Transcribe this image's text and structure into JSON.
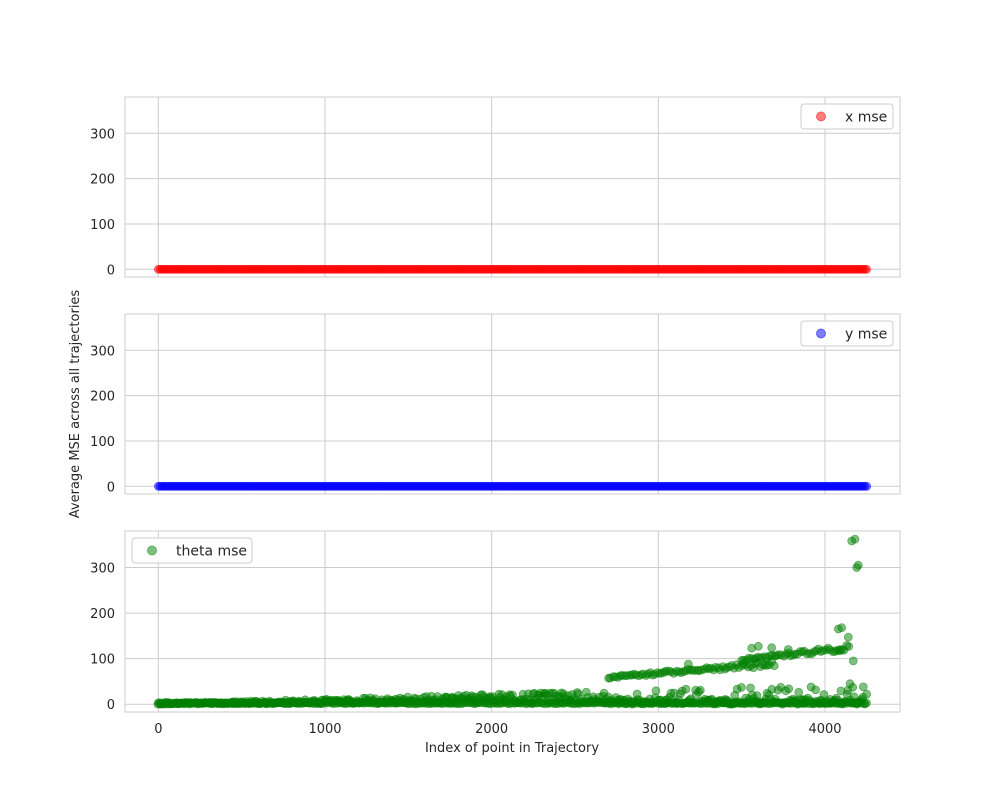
{
  "chart_data": [
    {
      "type": "scatter",
      "panel": "top",
      "xlim": [
        -200,
        4450
      ],
      "ylim": [
        -17,
        380
      ],
      "xticks": [
        0,
        1000,
        2000,
        3000,
        4000
      ],
      "yticks": [
        0,
        100,
        200,
        300
      ],
      "grid": true,
      "legend_placement": "top-right",
      "series": [
        {
          "name": "x mse",
          "color": "#ff0000",
          "alpha": 0.5,
          "x_range": [
            0,
            4250
          ],
          "y_value": 0
        }
      ]
    },
    {
      "type": "scatter",
      "panel": "middle",
      "xlim": [
        -200,
        4450
      ],
      "ylim": [
        -17,
        380
      ],
      "xticks": [
        0,
        1000,
        2000,
        3000,
        4000
      ],
      "yticks": [
        0,
        100,
        200,
        300
      ],
      "grid": true,
      "legend_placement": "top-right",
      "series": [
        {
          "name": "y mse",
          "color": "#0000ff",
          "alpha": 0.5,
          "x_range": [
            0,
            4250
          ],
          "y_value": 0
        }
      ]
    },
    {
      "type": "scatter",
      "panel": "bottom",
      "xlim": [
        -200,
        4450
      ],
      "ylim": [
        -17,
        380
      ],
      "xticks": [
        0,
        1000,
        2000,
        3000,
        4000
      ],
      "yticks": [
        0,
        100,
        200,
        300
      ],
      "grid": true,
      "legend_placement": "top-left",
      "series": [
        {
          "name": "theta mse",
          "color": "#008000",
          "alpha": 0.5,
          "bands": [
            {
              "x_range": [
                0,
                4250
              ],
              "y_start": 1,
              "y_end": 5
            },
            {
              "x_range": [
                0,
                4250
              ],
              "y_start": 1,
              "y_end": 45
            },
            {
              "x_range": [
                2700,
                3700
              ],
              "y_start": 45,
              "y_end": 90
            },
            {
              "x_range": [
                3500,
                4150
              ],
              "y_start": 85,
              "y_end": 125
            }
          ],
          "outliers": [
            {
              "x": 3180,
              "y": 88
            },
            {
              "x": 3560,
              "y": 123
            },
            {
              "x": 3600,
              "y": 127
            },
            {
              "x": 3680,
              "y": 124
            },
            {
              "x": 3780,
              "y": 120
            },
            {
              "x": 4080,
              "y": 165
            },
            {
              "x": 4100,
              "y": 168
            },
            {
              "x": 4140,
              "y": 147
            },
            {
              "x": 4090,
              "y": 120
            },
            {
              "x": 4170,
              "y": 95
            },
            {
              "x": 4160,
              "y": 358
            },
            {
              "x": 4180,
              "y": 362
            },
            {
              "x": 4190,
              "y": 300
            },
            {
              "x": 4200,
              "y": 305
            },
            {
              "x": 4150,
              "y": 45
            },
            {
              "x": 4230,
              "y": 38
            }
          ]
        }
      ]
    }
  ],
  "labels": {
    "xticks": [
      "0",
      "1000",
      "2000",
      "3000",
      "4000"
    ],
    "yticks": [
      "0",
      "100",
      "200",
      "300"
    ],
    "xlabel": "Index of point in Trajectory",
    "ylabel": "Average MSE across all trajectories"
  }
}
